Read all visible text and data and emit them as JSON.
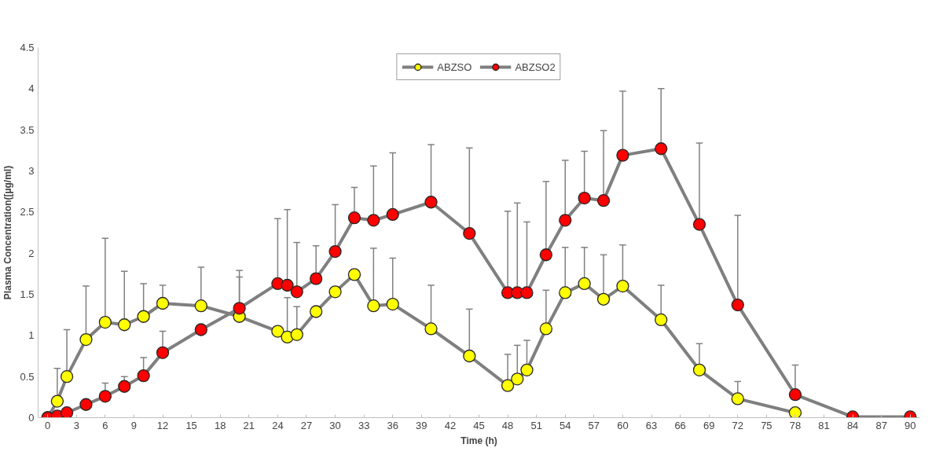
{
  "chart_data": {
    "type": "line",
    "xlabel": "Time (h)",
    "ylabel": "Plasma Concentration([µg/ml)",
    "x": [
      0,
      1,
      2,
      4,
      6,
      8,
      10,
      12,
      16,
      20,
      24,
      25,
      26,
      28,
      30,
      32,
      34,
      36,
      40,
      44,
      48,
      49,
      50,
      52,
      54,
      56,
      58,
      60,
      64,
      68,
      72,
      78,
      84,
      90
    ],
    "series": [
      {
        "name": "ABZSO",
        "color": "#ffff00",
        "values": [
          0,
          0.2,
          0.5,
          0.95,
          1.16,
          1.13,
          1.23,
          1.39,
          1.36,
          1.23,
          1.05,
          0.98,
          1.01,
          1.29,
          1.53,
          1.74,
          1.36,
          1.38,
          1.08,
          0.75,
          0.39,
          0.47,
          0.58,
          1.08,
          1.52,
          1.63,
          1.44,
          1.6,
          1.19,
          0.58,
          0.23,
          0.06,
          null,
          null
        ],
        "errors": [
          null,
          [
            0.2,
            0.6
          ],
          [
            0.5,
            1.07
          ],
          [
            0.95,
            1.6
          ],
          [
            1.16,
            2.18
          ],
          [
            1.13,
            1.78
          ],
          [
            1.23,
            1.63
          ],
          [
            1.39,
            1.61
          ],
          [
            1.36,
            1.83
          ],
          [
            1.23,
            1.71
          ],
          null,
          [
            0.98,
            1.46
          ],
          [
            1.01,
            1.35
          ],
          null,
          null,
          null,
          [
            1.36,
            2.06
          ],
          [
            1.38,
            1.94
          ],
          [
            1.08,
            1.61
          ],
          [
            0.75,
            1.32
          ],
          [
            0.39,
            0.77
          ],
          [
            0.47,
            0.88
          ],
          [
            0.58,
            0.94
          ],
          [
            1.08,
            1.55
          ],
          [
            1.52,
            2.07
          ],
          [
            1.63,
            2.07
          ],
          [
            1.44,
            1.98
          ],
          [
            1.6,
            2.1
          ],
          [
            1.19,
            1.61
          ],
          [
            0.58,
            0.9
          ],
          [
            0.23,
            0.44
          ],
          null,
          null,
          null
        ]
      },
      {
        "name": "ABZSO2",
        "color": "#ff0000",
        "values": [
          0,
          0.02,
          0.06,
          0.16,
          0.26,
          0.38,
          0.51,
          0.79,
          1.07,
          1.33,
          1.63,
          1.61,
          1.53,
          1.69,
          2.02,
          2.43,
          2.4,
          2.47,
          2.62,
          2.24,
          1.52,
          1.52,
          1.52,
          1.98,
          2.4,
          2.67,
          2.64,
          3.19,
          3.27,
          2.35,
          1.37,
          0.28,
          0.01,
          0.01
        ],
        "errors": [
          null,
          null,
          null,
          null,
          [
            0.26,
            0.42
          ],
          [
            0.38,
            0.5
          ],
          [
            0.51,
            0.73
          ],
          [
            0.79,
            1.05
          ],
          null,
          [
            1.33,
            1.79
          ],
          [
            1.63,
            2.42
          ],
          [
            1.61,
            2.53
          ],
          [
            1.53,
            2.13
          ],
          [
            1.69,
            2.09
          ],
          [
            2.02,
            2.59
          ],
          [
            2.43,
            2.8
          ],
          [
            2.4,
            3.06
          ],
          [
            2.47,
            3.22
          ],
          [
            2.62,
            3.32
          ],
          [
            2.24,
            3.28
          ],
          [
            1.52,
            2.51
          ],
          [
            1.52,
            2.61
          ],
          [
            1.52,
            2.38
          ],
          [
            1.98,
            2.87
          ],
          [
            2.4,
            3.13
          ],
          [
            2.67,
            3.24
          ],
          [
            2.64,
            3.49
          ],
          [
            3.19,
            3.97
          ],
          [
            3.27,
            4.0
          ],
          [
            2.35,
            3.34
          ],
          [
            1.37,
            2.46
          ],
          [
            0.28,
            0.64
          ],
          null,
          null
        ]
      }
    ],
    "xlim": [
      -1,
      91
    ],
    "xticks": [
      0,
      3,
      6,
      9,
      12,
      15,
      18,
      21,
      24,
      27,
      30,
      33,
      36,
      39,
      42,
      45,
      48,
      51,
      54,
      57,
      60,
      63,
      66,
      69,
      72,
      75,
      78,
      81,
      84,
      87,
      90
    ],
    "ylim": [
      0,
      4.5
    ],
    "yticks": [
      0,
      {
        "value": 0.5,
        "label": "0.5"
      },
      1,
      {
        "value": 1.5,
        "label": "1.5"
      },
      2,
      {
        "value": 2.5,
        "label": "2.5"
      },
      3,
      {
        "value": 3.5,
        "label": "3.5"
      },
      4,
      {
        "value": 4.5,
        "label": "4.5"
      }
    ],
    "grid": false,
    "legend": "top",
    "marker": "circle",
    "line_style": "solid"
  }
}
